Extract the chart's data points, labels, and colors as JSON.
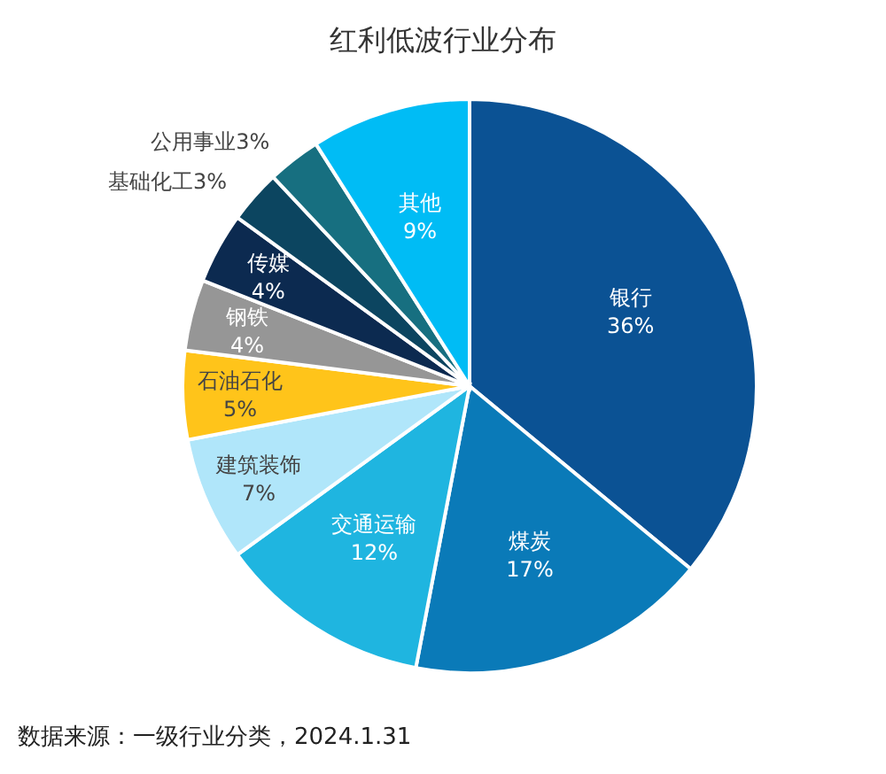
{
  "chart_data": {
    "type": "pie",
    "title": "红利低波行业分布",
    "categories": [
      "银行",
      "煤炭",
      "交通运输",
      "建筑装饰",
      "石油石化",
      "钢铁",
      "传媒",
      "基础化工",
      "公用事业",
      "其他"
    ],
    "values": [
      36,
      17,
      12,
      7,
      5,
      4,
      4,
      3,
      3,
      9
    ],
    "colors": [
      "#0b5294",
      "#0a7ab8",
      "#1fb5e0",
      "#b0e6fa",
      "#ffc41a",
      "#969696",
      "#0c2a50",
      "#0c4560",
      "#176f80",
      "#00bcf5"
    ],
    "value_labels": [
      "36%",
      "17%",
      "12%",
      "7%",
      "5%",
      "4%",
      "4%",
      "3%",
      "3%",
      "9%"
    ],
    "annotations": [
      "数据来源：一级行业分类，2024.1.31"
    ]
  }
}
